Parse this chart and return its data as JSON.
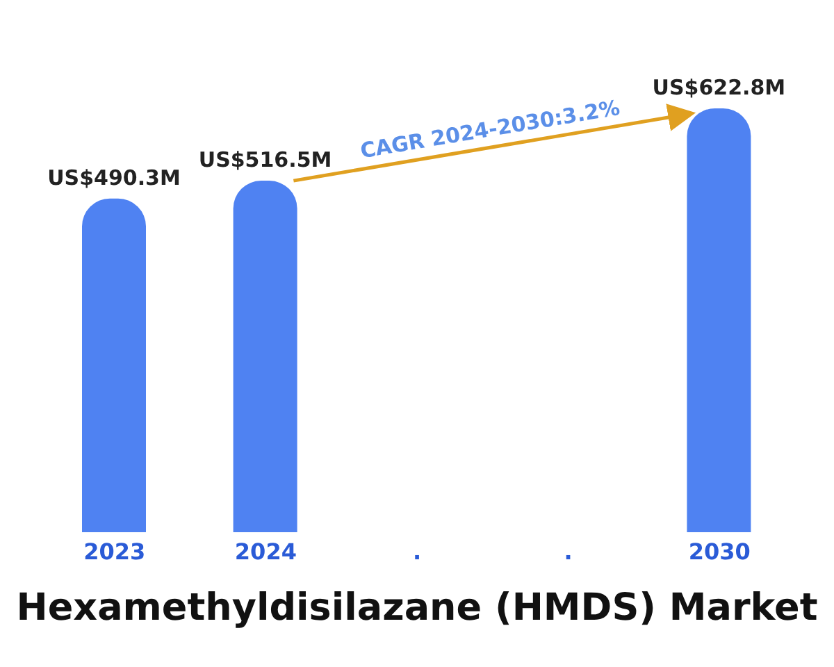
{
  "chart_data": {
    "type": "bar",
    "title": "Hexamethyldisilazane (HMDS) Market",
    "categories": [
      "2023",
      "2024",
      ".",
      ".",
      "2030"
    ],
    "values": [
      490300000,
      516500000,
      null,
      null,
      622800000
    ],
    "value_labels": [
      "US$490.3M",
      "US$516.5M",
      null,
      null,
      "US$622.8M"
    ],
    "color": "#4f82f2",
    "annotations": [
      "CAGR 2024-2030:3.2%"
    ],
    "grid": false,
    "legend": false
  }
}
